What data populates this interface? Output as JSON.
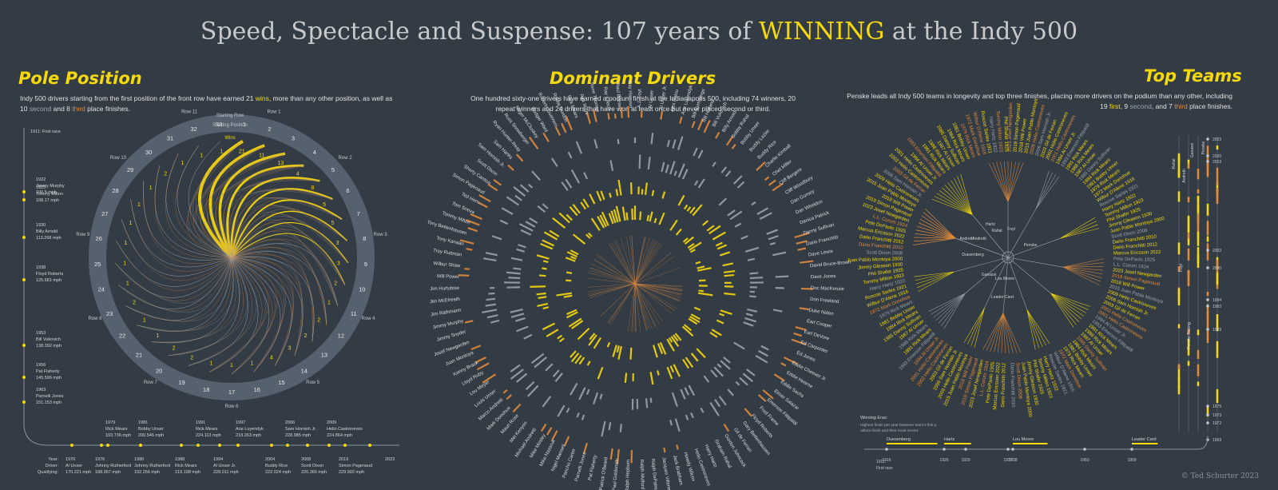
{
  "title": {
    "pre": "Speed, Spectacle and Suspense: 107 years of ",
    "hl": "WINNING",
    "post": " at the Indy 500"
  },
  "pole": {
    "title": "Pole Position",
    "desc_a": "Indy 500 drivers starting from the first position of the front row have earned 21 ",
    "wins": "wins",
    "desc_b": ", more than any other position, as well as 10 ",
    "second": "second",
    "desc_c": " and 8 ",
    "third": "third",
    "desc_d": " place finishes.",
    "legend": {
      "starting_row": "Starting Row",
      "starting_position": "Starting Position",
      "wins": "Wins"
    },
    "first_race": "1911: First race",
    "speed_events": [
      {
        "year": "1922",
        "driver": "Jimmy Murphy",
        "speed": "100.5 mph"
      },
      {
        "year": "1923",
        "driver": "Tommy Milton",
        "speed": "108.17 mph"
      },
      {
        "year": "1930",
        "driver": "Billy Arnold",
        "speed": "113.268 mph"
      },
      {
        "year": "1938",
        "driver": "Floyd Roberts",
        "speed": "125.681 mph"
      },
      {
        "year": "1953",
        "driver": "Bill Vukovich",
        "speed": "138.392 mph"
      },
      {
        "year": "1956",
        "driver": "Pat Flaherty",
        "speed": "145.596 mph"
      },
      {
        "year": "1963",
        "driver": "Parnelli Jones",
        "speed": "151.153 mph"
      }
    ],
    "timeline_top": [
      {
        "year": "1979",
        "driver": "Rick Mears",
        "speed": "193.736 mph"
      },
      {
        "year": "1981",
        "driver": "Bobby Unser",
        "speed": "200.546 mph"
      },
      {
        "year": "1991",
        "driver": "Rick Mears",
        "speed": "224.113 mph"
      },
      {
        "year": "1997",
        "driver": "Arie Luyendyk",
        "speed": "218.263 mph"
      },
      {
        "year": "2006",
        "driver": "Sam Hornish Jr.",
        "speed": "228.985 mph"
      },
      {
        "year": "2009",
        "driver": "Helio Castroneves",
        "speed": "224.864 mph"
      }
    ],
    "timeline_bottom": [
      {
        "year": "1970",
        "driver": "Al Unser",
        "speed": "170.221 mph"
      },
      {
        "year": "1976",
        "driver": "Johnny Rutherford",
        "speed": "188.957 mph"
      },
      {
        "year": "1980",
        "driver": "Johnny Rutherford",
        "speed": "192.256 mph"
      },
      {
        "year": "1988",
        "driver": "Rick Mears",
        "speed": "219.198 mph"
      },
      {
        "year": "1994",
        "driver": "Al Unser Jr.",
        "speed": "228.011 mph"
      },
      {
        "year": "2004",
        "driver": "Buddy Rice",
        "speed": "222.024 mph"
      },
      {
        "year": "2008",
        "driver": "Scott Dixon",
        "speed": "226.366 mph"
      },
      {
        "year": "2019",
        "driver": "Simon Pagenaud",
        "speed": "229.992 mph"
      }
    ],
    "timeline_keys": {
      "year": "Year:",
      "driver": "Driver:",
      "qual": "Qualifying:"
    },
    "end_year": "2023"
  },
  "drivers": {
    "title": "Dominant Drivers",
    "desc": "One hundred sixty-one drivers have earned a podium finish at the Indianapolis 500, including 74 winners, 20 repeat winners and 24 drivers that have won at least once but never placed second or third.",
    "names_left": [
      "Ralph DePalma",
      "Ralph Mulford",
      "Ralph Hepburn",
      "Paul Goldsmith",
      "Patrick O'Beard",
      "Pat Flaherty",
      "Parnelli Jones",
      "Pancho Carter",
      "Nigel Mansell",
      "Mike Nazaruk",
      "Mike Mosley",
      "Michael Andretti",
      "Mel Kenyon",
      "Mauri Rose",
      "Mark Donohue",
      "Marco Andretti",
      "Louis Unser",
      "Lou Meyer",
      "Lloyd Ruby",
      "Kenny Brack",
      "Juan Montoya",
      "Josef Newgarden",
      "Jimmy Snyder",
      "Jimmy Murphy",
      "Jim Rathmann",
      "Jim McElreath",
      "Jim Hurtubise"
    ],
    "names_left_upper": [
      "Ray Harroun",
      "Raul Boesel",
      "Ray Keech",
      "Rene Thomas",
      "Rex Mays",
      "Rick Mears",
      "Robby Gordon",
      "Roberto Guerrero",
      "Rodger Ward",
      "Roger McCluskey",
      "Russ Snowberger",
      "Ryan Hunter-Reay",
      "Sam Hanks",
      "Sam Hornish Jr.",
      "Scott Dixon",
      "Shorty Cantlon",
      "Simon Pagenaud",
      "Ted Horn",
      "Tom Sneva",
      "Tommy Milton",
      "Tony Bettenhausen",
      "Tony Kanaan",
      "Troy Ruttman",
      "Wilbur Shaw",
      "Will Power"
    ],
    "names_right": [
      "A.J. Foyt",
      "Al Unser",
      "Al Unser Jr.",
      "Alex Palou",
      "Arie Luyendyk",
      "Bill Cummings",
      "Bill Holland",
      "Bill Vukovich",
      "Billy Arnold",
      "Bobby Rahal",
      "Bobby Unser",
      "Buddy Lazier",
      "Buddy Rice",
      "Charlie Kimball",
      "Chet Miller",
      "Cliff Bergere",
      "Cliff Woodbury",
      "Dan Gurney",
      "Dan Wheldon",
      "Danica Patrick",
      "Danny Sullivan",
      "Dario Franchitti",
      "Dave Lewis",
      "David Bruce-Brown",
      "Dave Jones",
      "Doc MacKenzie",
      "Don Freeland",
      "Duke Nalon",
      "Earl Cooper",
      "Earl DeVore",
      "Ed Carpenter",
      "Ed Jones",
      "Eddie Cheever Jr.",
      "Eddie Hearne",
      "Eddie Sachs",
      "Elmer Salazar",
      "Emerson Fittipaldi",
      "Fred Frame",
      "Floyd Roberts",
      "Gary Bettenhausen",
      "Gil de Ferran",
      "Gordon Johncock",
      "Graham Rahal",
      "Harry Hartz",
      "Helio Castroneves",
      "Howdy Wilcox",
      "Jack Brabham",
      "Jacques Villeneuve"
    ]
  },
  "teams": {
    "title": "Top Teams",
    "desc_a": "Penske leads all Indy 500 teams in longevity and top three finishes, placing more drivers on the podium than any other, including 19 ",
    "first": "first",
    "desc_b": ", 9 ",
    "second": "second",
    "desc_c": ", and 7 ",
    "third": "third",
    "desc_d": " place finishes.",
    "branch_labels": [
      "Duesenberg",
      "Ganassi",
      "Hartz",
      "Lou Moore",
      "Leader Card",
      "Penske",
      "Andretti",
      "Rahal",
      "Foyt",
      "Andretti"
    ],
    "right_names": [
      "2023 Josef Newgarden",
      "2019 Simon Pagenaud",
      "2018 Will Power",
      "2015 Juan Pablo Montoya",
      "2009 Helio Castroneves",
      "2006 Sam Hornish Jr.",
      "2003 Gil de Ferran",
      "2002 Helio Castroneves",
      "2001 Helio Castroneves",
      "1994 Al Unser Jr.",
      "1993 Emerson Fittipaldi",
      "1991 Rick Mears",
      "1988 Rick Mears",
      "1987 Al Unser",
      "1985 Danny Sullivan",
      "1984 Rick Mears",
      "1981 Bobby Unser",
      "1979 Rick Mears",
      "1972 Mark Donohue"
    ],
    "left_names": [
      "Wilbur D'Alene 1916",
      "Roscoe Sarles 1921",
      "Harry Hartz 1922",
      "Tommy Milton 1923",
      "Phil Shafer 1925",
      "Jimmy Gleason 1930",
      "Juan Pablo Montoya 2000",
      "Scott Dixon 2008",
      "Dario Franchitti 2010",
      "Dario Franchitti 2012",
      "Marcus Ericsson 2022",
      "Pete DePaolo 1925",
      "L.L. Corum 1924"
    ],
    "eras_title": "Winning Eras:",
    "eras_desc": "Highest finish per year between team's first podium finish and their most recent.",
    "eras": [
      {
        "name": "Duesenberg",
        "year": "1916"
      },
      {
        "name": "Hartz",
        "year": "1926"
      },
      {
        "name": "Lou Moore",
        "year": "1938"
      },
      {
        "name": "Leader Card",
        "year": "1959"
      }
    ],
    "era_years": [
      "1929",
      "1937",
      "1950"
    ],
    "first_race": "1911: First race",
    "vertical_teams": [
      "Rahal",
      "Andretti",
      "Ganassi",
      "Penske",
      "Foyt",
      "Penske Racing"
    ],
    "vertical_years": [
      "2023",
      "2020",
      "2019",
      "2003",
      "2000",
      "1994",
      "1993",
      "1989",
      "1975",
      "1973",
      "1972",
      "1969"
    ]
  },
  "credit": "© Ted Schurter 2023",
  "colors": {
    "bg": "#333c45",
    "win": "#f5d90a",
    "second": "#9aa3ad",
    "third": "#e08a3c",
    "ring": "#55616d"
  }
}
